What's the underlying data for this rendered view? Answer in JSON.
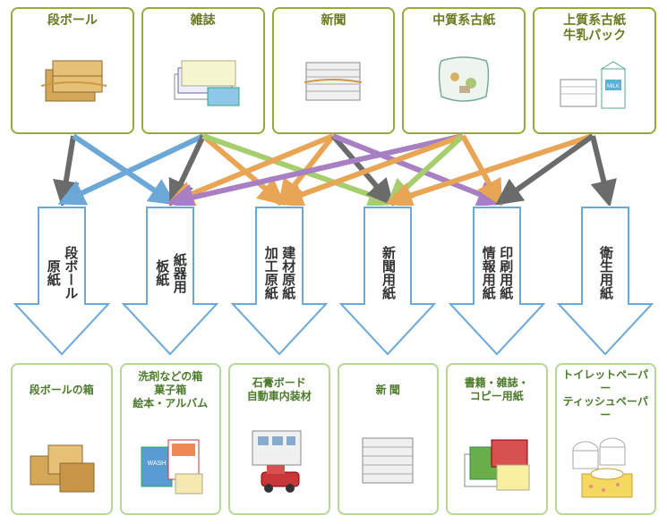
{
  "colors": {
    "top_border": "#9aa83a",
    "top_text": "#6a7a1f",
    "bot_border": "#b7d69a",
    "bot_text": "#4a7a2a",
    "arrow_stroke": "#6ba8d8",
    "arrow_fill": "#ffffff",
    "conn": {
      "gray": "#6b6b6b",
      "blue": "#6ba8d8",
      "orange": "#e8a556",
      "green": "#a7ce6e",
      "purple": "#a77fc2"
    }
  },
  "top": [
    {
      "label": "段ボール"
    },
    {
      "label": "雑誌"
    },
    {
      "label": "新聞"
    },
    {
      "label": "中質系古紙"
    },
    {
      "label": "上質系古紙\n牛乳パック"
    }
  ],
  "mid": [
    {
      "lines": [
        "段ボール",
        "原紙"
      ]
    },
    {
      "lines": [
        "紙器用",
        "板紙"
      ]
    },
    {
      "lines": [
        "建材原紙",
        "加工原紙"
      ]
    },
    {
      "lines": [
        "新聞用紙"
      ]
    },
    {
      "lines": [
        "印刷用紙",
        "情報用紙"
      ]
    },
    {
      "lines": [
        "衛生用紙"
      ]
    }
  ],
  "bot": [
    {
      "label": "段ボールの箱"
    },
    {
      "label": "洗剤などの箱\n菓子箱\n絵本・アルバム"
    },
    {
      "label": "石膏ボード\n自動車内装材"
    },
    {
      "label": "新 聞"
    },
    {
      "label": "書籍・雑誌・\nコピー用紙"
    },
    {
      "label": "トイレットペーパー\nティッシュペーパー"
    }
  ],
  "top_x": [
    82,
    227,
    372,
    517,
    662
  ],
  "mid_x": [
    70,
    192,
    314,
    436,
    558,
    680
  ],
  "connections": [
    {
      "from": 0,
      "to": 0,
      "color": "gray"
    },
    {
      "from": 0,
      "to": 1,
      "color": "blue"
    },
    {
      "from": 1,
      "to": 0,
      "color": "blue"
    },
    {
      "from": 1,
      "to": 1,
      "color": "gray"
    },
    {
      "from": 1,
      "to": 2,
      "color": "orange"
    },
    {
      "from": 1,
      "to": 3,
      "color": "green"
    },
    {
      "from": 2,
      "to": 1,
      "color": "orange"
    },
    {
      "from": 2,
      "to": 2,
      "color": "orange"
    },
    {
      "from": 2,
      "to": 3,
      "color": "gray"
    },
    {
      "from": 2,
      "to": 4,
      "color": "purple"
    },
    {
      "from": 3,
      "to": 1,
      "color": "purple"
    },
    {
      "from": 3,
      "to": 2,
      "color": "orange"
    },
    {
      "from": 3,
      "to": 3,
      "color": "green"
    },
    {
      "from": 3,
      "to": 4,
      "color": "orange"
    },
    {
      "from": 4,
      "to": 3,
      "color": "orange"
    },
    {
      "from": 4,
      "to": 4,
      "color": "gray"
    },
    {
      "from": 4,
      "to": 5,
      "color": "gray"
    }
  ]
}
